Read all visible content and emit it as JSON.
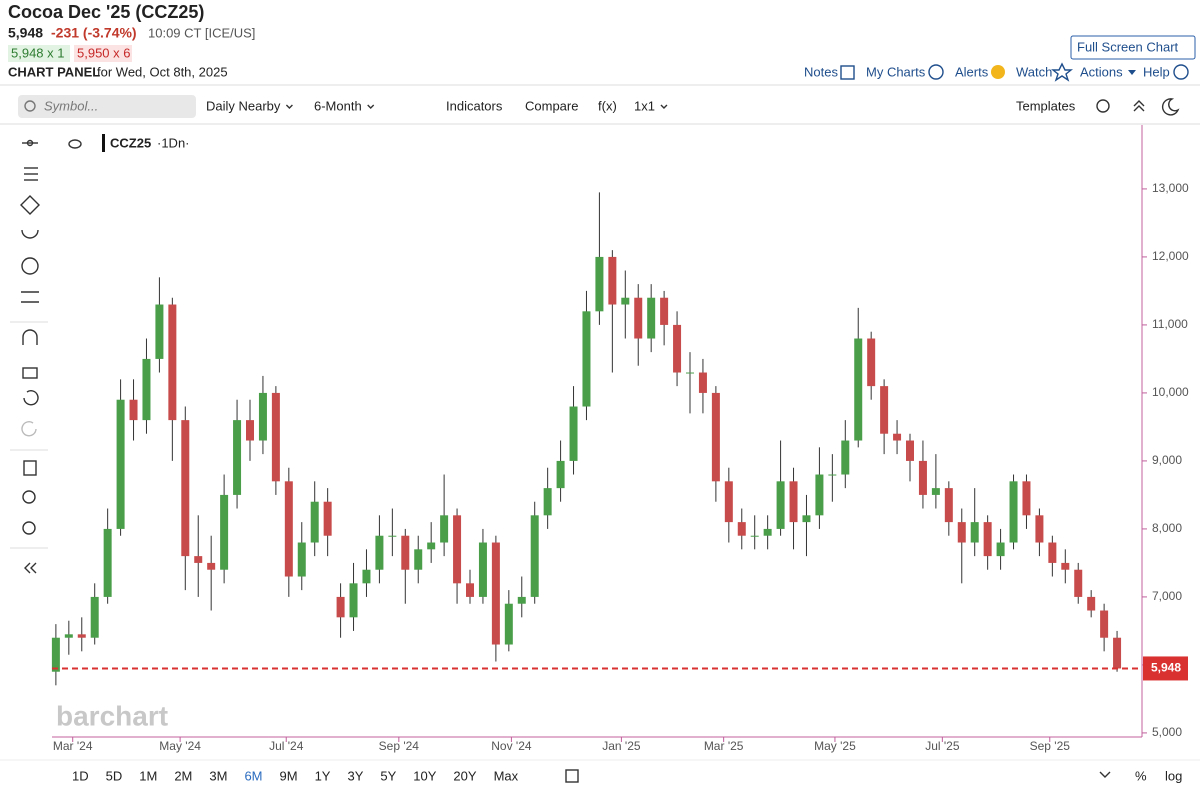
{
  "header": {
    "title": "Cocoa Dec '25 (CCZ25)",
    "last": "5,948",
    "change": "-231 (-3.74%)",
    "time": "10:09 CT [ICE/US]",
    "bid": "5,948 x 1",
    "ask": "5,950 x 6",
    "panel": "CHART PANEL",
    "date": "for Wed, Oct 8th, 2025",
    "fullscreen": "Full Screen Chart"
  },
  "links": [
    "Notes",
    "My Charts",
    "Alerts",
    "Watch",
    "Actions",
    "Help"
  ],
  "toolbar": {
    "search": "Symbol...",
    "items": [
      "Daily Nearby",
      "6-Month",
      "Indicators",
      "Compare",
      "f(x)",
      "1x1"
    ],
    "templates": "Templates"
  },
  "legend": {
    "symbol": "CCZ25",
    "interval": "·1Dn·"
  },
  "watermark": "barchart",
  "ranges": [
    "1D",
    "5D",
    "1M",
    "2M",
    "3M",
    "6M",
    "9M",
    "1Y",
    "3Y",
    "5Y",
    "10Y",
    "20Y",
    "Max"
  ],
  "options": [
    "%",
    "log"
  ],
  "chart_data": {
    "type": "candlestick",
    "up_color": "#4a9e4a",
    "down_color": "#c84b4b",
    "last_color": "#d93030",
    "xlim": [
      -0.3,
      83
    ],
    "ylim": [
      4940,
      13940
    ],
    "xticks": [
      {
        "value": 1.3,
        "label": "Mar '24"
      },
      {
        "value": 9.6,
        "label": "May '24"
      },
      {
        "value": 17.8,
        "label": "Jul '24"
      },
      {
        "value": 26.5,
        "label": "Sep '24"
      },
      {
        "value": 35.2,
        "label": "Nov '24"
      },
      {
        "value": 43.7,
        "label": "Jan '25"
      },
      {
        "value": 51.6,
        "label": "Mar '25"
      },
      {
        "value": 60.2,
        "label": "May '25"
      },
      {
        "value": 68.5,
        "label": "Jul '25"
      },
      {
        "value": 76.8,
        "label": "Sep '25"
      }
    ],
    "yticks": [
      {
        "value": 5000,
        "label": "5,000"
      },
      {
        "value": 6000,
        "label": "6,000"
      },
      {
        "value": 7000,
        "label": "7,000"
      },
      {
        "value": 8000,
        "label": "8,000"
      },
      {
        "value": 9000,
        "label": "9,000"
      },
      {
        "value": 10000,
        "label": "10,000"
      },
      {
        "value": 11000,
        "label": "11,000"
      },
      {
        "value": 12000,
        "label": "12,000"
      },
      {
        "value": 13000,
        "label": "13,000"
      }
    ],
    "last_label": "5,948",
    "ohlc": [
      [
        5900,
        6600,
        5700,
        6400
      ],
      [
        6400,
        6650,
        6150,
        6450
      ],
      [
        6450,
        6700,
        6200,
        6400
      ],
      [
        6400,
        7200,
        6300,
        7000
      ],
      [
        7000,
        8300,
        6900,
        8000
      ],
      [
        8000,
        10200,
        7900,
        9900
      ],
      [
        9900,
        10200,
        9300,
        9600
      ],
      [
        9600,
        10800,
        9400,
        10500
      ],
      [
        10500,
        11700,
        10300,
        11300
      ],
      [
        11300,
        11400,
        9000,
        9600
      ],
      [
        9600,
        9800,
        7100,
        7600
      ],
      [
        7600,
        8200,
        7000,
        7500
      ],
      [
        7500,
        7900,
        6800,
        7400
      ],
      [
        7400,
        8800,
        7200,
        8500
      ],
      [
        8500,
        9900,
        8300,
        9600
      ],
      [
        9600,
        9900,
        9000,
        9300
      ],
      [
        9300,
        10250,
        9100,
        10000
      ],
      [
        10000,
        10100,
        8500,
        8700
      ],
      [
        8700,
        8900,
        7000,
        7300
      ],
      [
        7300,
        8100,
        7100,
        7800
      ],
      [
        7800,
        8700,
        7600,
        8400
      ],
      [
        8400,
        8600,
        7600,
        7900
      ],
      [
        7000,
        7200,
        6400,
        6700
      ],
      [
        6700,
        7500,
        6500,
        7200
      ],
      [
        7200,
        7700,
        7000,
        7400
      ],
      [
        7400,
        8200,
        7200,
        7900
      ],
      [
        7900,
        8300,
        7600,
        7900
      ],
      [
        7900,
        8000,
        6900,
        7400
      ],
      [
        7400,
        7900,
        7200,
        7700
      ],
      [
        7700,
        8100,
        7500,
        7800
      ],
      [
        7800,
        8800,
        7600,
        8200
      ],
      [
        8200,
        8300,
        6900,
        7200
      ],
      [
        7200,
        7400,
        6900,
        7000
      ],
      [
        7000,
        8000,
        6900,
        7800
      ],
      [
        7800,
        7900,
        6050,
        6300
      ],
      [
        6300,
        7100,
        6200,
        6900
      ],
      [
        6900,
        7300,
        6700,
        7000
      ],
      [
        7000,
        8400,
        6900,
        8200
      ],
      [
        8200,
        8900,
        8000,
        8600
      ],
      [
        8600,
        9300,
        8400,
        9000
      ],
      [
        9000,
        10100,
        8800,
        9800
      ],
      [
        9800,
        11500,
        9600,
        11200
      ],
      [
        11200,
        12950,
        11000,
        12000
      ],
      [
        12000,
        12100,
        10300,
        11300
      ],
      [
        11300,
        11800,
        10800,
        11400
      ],
      [
        11400,
        11600,
        10400,
        10800
      ],
      [
        10800,
        11600,
        10600,
        11400
      ],
      [
        11400,
        11500,
        10700,
        11000
      ],
      [
        11000,
        11200,
        10100,
        10300
      ],
      [
        10300,
        10600,
        9700,
        10300
      ],
      [
        10300,
        10500,
        9700,
        10000
      ],
      [
        10000,
        10100,
        8400,
        8700
      ],
      [
        8700,
        8900,
        7800,
        8100
      ],
      [
        8100,
        8300,
        7700,
        7900
      ],
      [
        7900,
        8200,
        7700,
        7900
      ],
      [
        7900,
        8200,
        7700,
        8000
      ],
      [
        8000,
        9300,
        7900,
        8700
      ],
      [
        8700,
        8900,
        7700,
        8100
      ],
      [
        8100,
        8500,
        7600,
        8200
      ],
      [
        8200,
        9200,
        8000,
        8800
      ],
      [
        8800,
        9100,
        8400,
        8800
      ],
      [
        8800,
        9600,
        8600,
        9300
      ],
      [
        9300,
        11250,
        9200,
        10800
      ],
      [
        10800,
        10900,
        9900,
        10100
      ],
      [
        10100,
        10200,
        9100,
        9400
      ],
      [
        9400,
        9600,
        9100,
        9300
      ],
      [
        9300,
        9400,
        8700,
        9000
      ],
      [
        9000,
        9300,
        8300,
        8500
      ],
      [
        8500,
        9100,
        8300,
        8600
      ],
      [
        8600,
        8700,
        7900,
        8100
      ],
      [
        8100,
        8300,
        7200,
        7800
      ],
      [
        7800,
        8600,
        7600,
        8100
      ],
      [
        8100,
        8200,
        7400,
        7600
      ],
      [
        7600,
        8000,
        7400,
        7800
      ],
      [
        7800,
        8800,
        7700,
        8700
      ],
      [
        8700,
        8800,
        8000,
        8200
      ],
      [
        8200,
        8300,
        7600,
        7800
      ],
      [
        7800,
        7900,
        7300,
        7500
      ],
      [
        7500,
        7700,
        7200,
        7400
      ],
      [
        7400,
        7500,
        6900,
        7000
      ],
      [
        7000,
        7100,
        6700,
        6800
      ],
      [
        6800,
        6900,
        6200,
        6400
      ],
      [
        6400,
        6500,
        5900,
        5948
      ]
    ]
  }
}
